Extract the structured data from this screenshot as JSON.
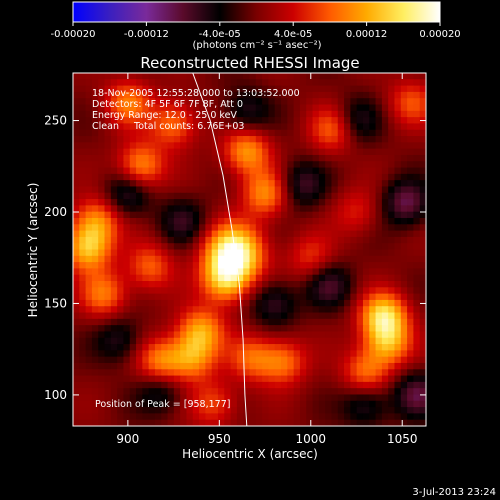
{
  "colorbar": {
    "ticks": [
      "-0.00020",
      "-0.00012",
      "-4.0e-05",
      "4.0e-05",
      "0.00012",
      "0.00020"
    ],
    "tick_values": [
      -0.0002,
      -0.00012,
      -4e-05,
      4e-05,
      0.00012,
      0.0002
    ],
    "range": [
      -0.0002,
      0.0002
    ],
    "units": "(photons cm⁻² s⁻¹ asec⁻²)",
    "stops": [
      "#0000ff",
      "#3a1fc0",
      "#7a2a9a",
      "#5a0a2a",
      "#000000",
      "#7a0000",
      "#cc0000",
      "#ff5a00",
      "#ffaa00",
      "#ffee60",
      "#ffffff"
    ]
  },
  "chart_data": {
    "type": "heatmap",
    "title": "Reconstructed RHESSI Image",
    "xlabel": "Heliocentric X (arcsec)",
    "ylabel": "Heliocentric Y (arcsec)",
    "xlim": [
      870,
      1063
    ],
    "ylim": [
      83,
      276
    ],
    "x_ticks": [
      900,
      950,
      1000,
      1050
    ],
    "y_ticks": [
      100,
      150,
      200,
      250
    ],
    "annotations": [
      "18-Nov-2005 12:55:28.000 to 13:03:52.000",
      "Detectors: 4F 5F 6F 7F 8F, Att 0",
      "Energy Range: 12.0 - 25.0 keV",
      "Clean     Total counts: 6.76E+03"
    ],
    "peak_label": "Position of Peak = [958,177]",
    "peak": [
      958,
      177
    ],
    "limb_arc": [
      [
        934,
        280
      ],
      [
        945,
        250
      ],
      [
        952,
        220
      ],
      [
        957,
        190
      ],
      [
        961,
        160
      ],
      [
        963,
        130
      ],
      [
        964,
        100
      ],
      [
        965,
        83
      ]
    ],
    "sources": [
      {
        "x": 958,
        "y": 177,
        "amp": 1.0
      },
      {
        "x": 953,
        "y": 162,
        "amp": 0.55
      },
      {
        "x": 975,
        "y": 210,
        "amp": 0.5
      },
      {
        "x": 965,
        "y": 233,
        "amp": 0.55
      },
      {
        "x": 940,
        "y": 135,
        "amp": 0.55
      },
      {
        "x": 935,
        "y": 120,
        "amp": 0.5
      },
      {
        "x": 918,
        "y": 118,
        "amp": 0.5
      },
      {
        "x": 883,
        "y": 195,
        "amp": 0.5
      },
      {
        "x": 878,
        "y": 180,
        "amp": 0.65
      },
      {
        "x": 907,
        "y": 225,
        "amp": 0.55
      },
      {
        "x": 925,
        "y": 248,
        "amp": 0.45
      },
      {
        "x": 900,
        "y": 260,
        "amp": 0.45
      },
      {
        "x": 887,
        "y": 155,
        "amp": 0.45
      },
      {
        "x": 912,
        "y": 170,
        "amp": 0.4
      },
      {
        "x": 1040,
        "y": 143,
        "amp": 0.75
      },
      {
        "x": 1042,
        "y": 128,
        "amp": 0.55
      },
      {
        "x": 1030,
        "y": 112,
        "amp": 0.45
      },
      {
        "x": 1012,
        "y": 245,
        "amp": 0.4
      },
      {
        "x": 985,
        "y": 118,
        "amp": 0.45
      },
      {
        "x": 968,
        "y": 120,
        "amp": 0.4
      },
      {
        "x": 947,
        "y": 95,
        "amp": 0.35
      },
      {
        "x": 1055,
        "y": 260,
        "amp": 0.35
      },
      {
        "x": 1000,
        "y": 175,
        "amp": 0.3
      },
      {
        "x": 1025,
        "y": 200,
        "amp": 0.25
      },
      {
        "x": 1052,
        "y": 205,
        "amp": -0.45
      },
      {
        "x": 1058,
        "y": 100,
        "amp": -0.4
      },
      {
        "x": 1010,
        "y": 160,
        "amp": -0.35
      },
      {
        "x": 995,
        "y": 215,
        "amp": -0.35
      },
      {
        "x": 1025,
        "y": 250,
        "amp": -0.3
      },
      {
        "x": 900,
        "y": 210,
        "amp": -0.35
      },
      {
        "x": 930,
        "y": 195,
        "amp": -0.3
      },
      {
        "x": 895,
        "y": 130,
        "amp": -0.3
      },
      {
        "x": 980,
        "y": 150,
        "amp": -0.35
      },
      {
        "x": 1030,
        "y": 95,
        "amp": -0.35
      },
      {
        "x": 965,
        "y": 255,
        "amp": -0.3
      },
      {
        "x": 918,
        "y": 102,
        "amp": -0.3
      }
    ]
  },
  "footer": {
    "timestamp": "3-Jul-2013 23:24"
  }
}
